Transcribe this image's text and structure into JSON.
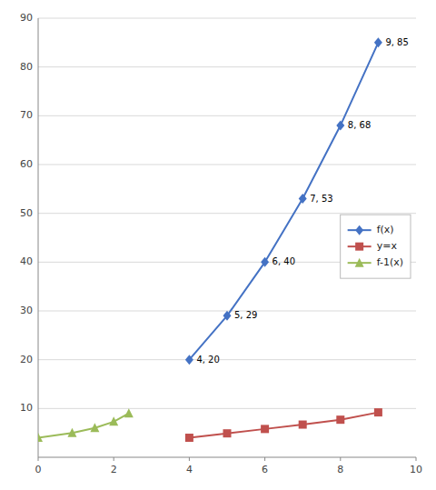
{
  "chart_data": {
    "type": "line",
    "series": [
      {
        "name": "f(x)",
        "color": "#4472C4",
        "marker": "diamond",
        "x": [
          4,
          5,
          6,
          7,
          8,
          9
        ],
        "values": [
          20,
          29,
          40,
          53,
          68,
          85
        ],
        "data_labels": true,
        "value_labels": [
          "4, 20",
          "5, 29",
          "6, 40",
          "7, 53",
          "8, 68",
          "9, 85"
        ]
      },
      {
        "name": "y=x",
        "color": "#C0504D",
        "marker": "square",
        "x": [
          4,
          5,
          6,
          7,
          8,
          9
        ],
        "values": [
          4.0,
          4.9,
          5.8,
          6.7,
          7.7,
          9.2
        ]
      },
      {
        "name": "f-1(x)",
        "color": "#9BBB59",
        "marker": "triangle",
        "x": [
          0,
          0.9,
          1.5,
          2.0,
          2.4
        ],
        "values": [
          4.0,
          5.0,
          6.0,
          7.3,
          9.0
        ]
      }
    ],
    "xlim": [
      0,
      10
    ],
    "ylim": [
      0,
      90
    ],
    "xticks": [
      0,
      2,
      4,
      6,
      8,
      10
    ],
    "yticks": [
      10,
      20,
      30,
      40,
      50,
      60,
      70,
      80,
      90
    ],
    "grid": "y",
    "legend": "right"
  }
}
